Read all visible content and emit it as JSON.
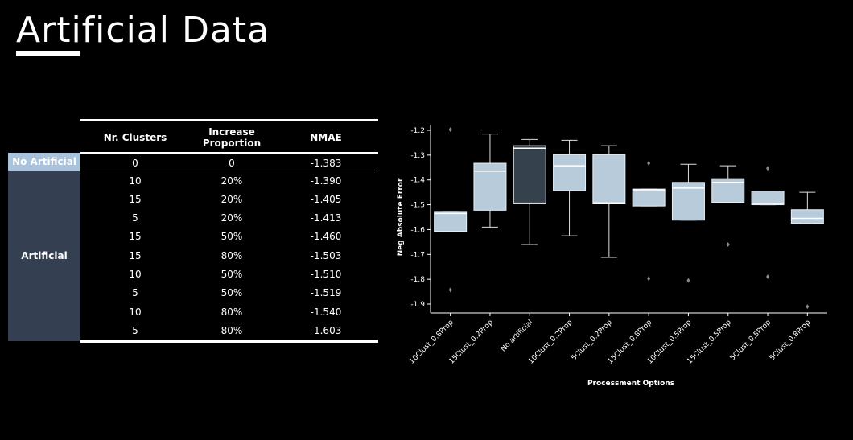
{
  "page": {
    "title": "Artificial Data"
  },
  "table": {
    "headers": [
      "Nr. Clusters",
      "Increase\nProportion",
      "NMAE"
    ],
    "groups": {
      "no_artificial": "No Artificial",
      "artificial": "Artificial"
    },
    "rows": [
      [
        "0",
        "0",
        "-1.383"
      ],
      [
        "10",
        "20%",
        "-1.390"
      ],
      [
        "15",
        "20%",
        "-1.405"
      ],
      [
        "5",
        "20%",
        "-1.413"
      ],
      [
        "15",
        "50%",
        "-1.460"
      ],
      [
        "15",
        "80%",
        "-1.503"
      ],
      [
        "10",
        "50%",
        "-1.510"
      ],
      [
        "5",
        "50%",
        "-1.519"
      ],
      [
        "10",
        "80%",
        "-1.540"
      ],
      [
        "5",
        "80%",
        "-1.603"
      ]
    ]
  },
  "chart_data": {
    "type": "box",
    "xlabel": "Processment Options",
    "ylabel": "Neg Absolute Error",
    "ylim": [
      -1.92,
      -1.18
    ],
    "yticks": [
      -1.2,
      -1.3,
      -1.4,
      -1.5,
      -1.6,
      -1.7,
      -1.8,
      -1.9
    ],
    "categories": [
      "10Clust_0.8Prop",
      "15Clust_0.2Prop",
      "No artificial",
      "10Clust_0.2Prop",
      "5Clust_0.2Prop",
      "15Clust_0.8Prop",
      "10Clust_0.5Prop",
      "15Clust_0.5Prop",
      "5Clust_0.5Prop",
      "5Clust_0.8Prop"
    ],
    "boxes": [
      {
        "q1": -1.607,
        "median": -1.535,
        "q3": -1.527,
        "whisker_low": -1.607,
        "whisker_high": -1.527,
        "outliers": [
          -1.197,
          -1.843
        ],
        "color": "#b8cbdb"
      },
      {
        "q1": -1.522,
        "median": -1.365,
        "q3": -1.333,
        "whisker_low": -1.59,
        "whisker_high": -1.215,
        "outliers": [],
        "color": "#b8cbdb"
      },
      {
        "q1": -1.493,
        "median": -1.272,
        "q3": -1.262,
        "whisker_low": -1.66,
        "whisker_high": -1.237,
        "outliers": [],
        "color": "#35414d"
      },
      {
        "q1": -1.443,
        "median": -1.343,
        "q3": -1.298,
        "whisker_low": -1.625,
        "whisker_high": -1.24,
        "outliers": [],
        "color": "#b8cbdb"
      },
      {
        "q1": -1.493,
        "median": -1.493,
        "q3": -1.298,
        "whisker_low": -1.712,
        "whisker_high": -1.262,
        "outliers": [],
        "color": "#b8cbdb"
      },
      {
        "q1": -1.505,
        "median": -1.44,
        "q3": -1.437,
        "whisker_low": -1.505,
        "whisker_high": -1.437,
        "outliers": [
          -1.333,
          -1.797
        ],
        "color": "#b8cbdb"
      },
      {
        "q1": -1.562,
        "median": -1.433,
        "q3": -1.41,
        "whisker_low": -1.562,
        "whisker_high": -1.337,
        "outliers": [
          -1.805
        ],
        "color": "#b8cbdb"
      },
      {
        "q1": -1.49,
        "median": -1.41,
        "q3": -1.395,
        "whisker_low": -1.49,
        "whisker_high": -1.343,
        "outliers": [
          -1.66
        ],
        "color": "#b8cbdb"
      },
      {
        "q1": -1.5,
        "median": -1.495,
        "q3": -1.445,
        "whisker_low": -1.5,
        "whisker_high": -1.445,
        "outliers": [
          -1.353,
          -1.79
        ],
        "color": "#b8cbdb"
      },
      {
        "q1": -1.575,
        "median": -1.555,
        "q3": -1.52,
        "whisker_low": -1.575,
        "whisker_high": -1.45,
        "outliers": [
          -1.91
        ],
        "color": "#b8cbdb"
      }
    ]
  }
}
